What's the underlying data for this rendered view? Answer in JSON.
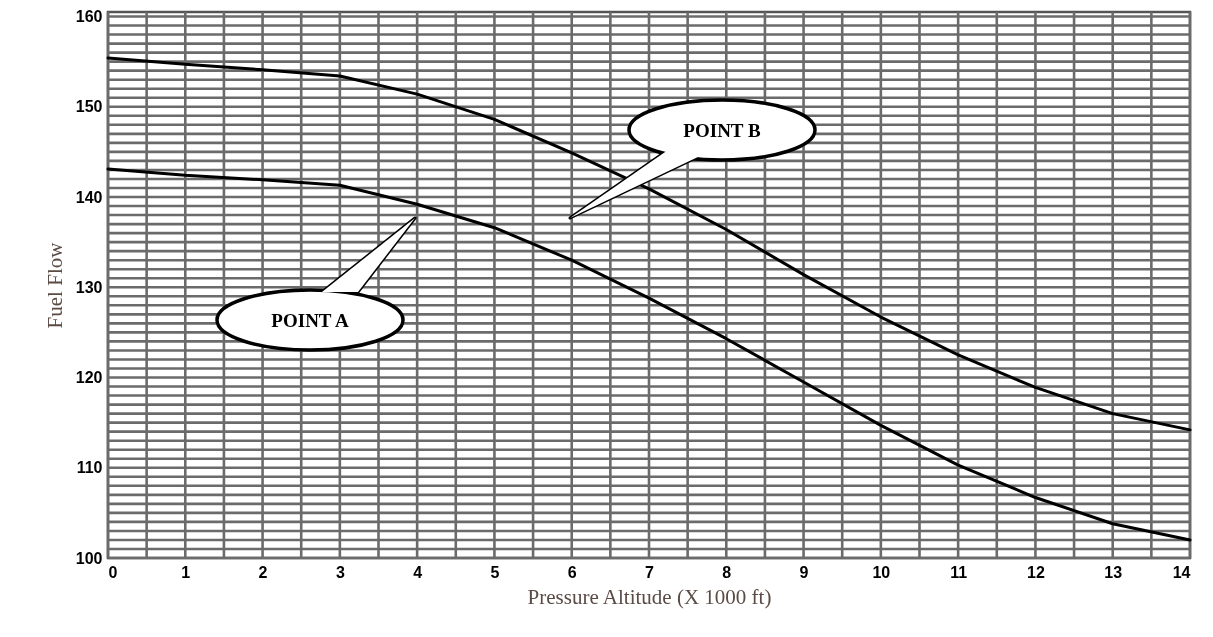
{
  "chart_data": {
    "type": "line",
    "xlabel": "Pressure  Altitude (X 1000 ft)",
    "ylabel": "Fuel Flow",
    "x": [
      0,
      1,
      2,
      3,
      4,
      5,
      6,
      7,
      8,
      9,
      10,
      11,
      12,
      13,
      14
    ],
    "series": [
      {
        "color": "#000000",
        "values": [
          155.4,
          154.7,
          154.1,
          153.4,
          151.4,
          148.6,
          144.9,
          140.9,
          136.4,
          131.4,
          126.7,
          122.5,
          118.9,
          116,
          114.2
        ]
      },
      {
        "color": "#000000",
        "values": [
          143.1,
          142.4,
          141.9,
          141.3,
          139.2,
          136.6,
          133,
          128.8,
          124.3,
          119.5,
          114.7,
          110.3,
          106.7,
          103.8,
          102
        ]
      }
    ],
    "annotations": [
      "POINT A",
      "POINT B"
    ],
    "xlim": [
      0,
      14
    ],
    "ylim": [
      100,
      160.5
    ],
    "xticks": [
      0,
      {
        "value": 0.5,
        "label": null
      },
      1,
      {
        "value": 1.5,
        "label": null
      },
      2,
      {
        "value": 2.5,
        "label": null
      },
      3,
      {
        "value": 3.5,
        "label": null
      },
      4,
      {
        "value": 4.5,
        "label": null
      },
      5,
      {
        "value": 5.5,
        "label": null
      },
      6,
      {
        "value": 6.5,
        "label": null
      },
      7,
      {
        "value": 7.5,
        "label": null
      },
      8,
      {
        "value": 8.5,
        "label": null
      },
      9,
      {
        "value": 9.5,
        "label": null
      },
      10,
      {
        "value": 10.5,
        "label": null
      },
      11,
      {
        "value": 11.5,
        "label": null
      },
      12,
      {
        "value": 12.5,
        "label": null
      },
      13,
      {
        "value": 13.5,
        "label": null
      },
      14
    ],
    "yticks": [
      100,
      {
        "value": 101,
        "label": null
      },
      {
        "value": 102,
        "label": null
      },
      {
        "value": 103,
        "label": null
      },
      {
        "value": 104,
        "label": null
      },
      {
        "value": 105,
        "label": null
      },
      {
        "value": 106,
        "label": null
      },
      {
        "value": 107,
        "label": null
      },
      {
        "value": 108,
        "label": null
      },
      {
        "value": 109,
        "label": null
      },
      110,
      {
        "value": 111,
        "label": null
      },
      {
        "value": 112,
        "label": null
      },
      {
        "value": 113,
        "label": null
      },
      {
        "value": 114,
        "label": null
      },
      {
        "value": 115,
        "label": null
      },
      {
        "value": 116,
        "label": null
      },
      {
        "value": 117,
        "label": null
      },
      {
        "value": 118,
        "label": null
      },
      {
        "value": 119,
        "label": null
      },
      120,
      {
        "value": 121,
        "label": null
      },
      {
        "value": 122,
        "label": null
      },
      {
        "value": 123,
        "label": null
      },
      {
        "value": 124,
        "label": null
      },
      {
        "value": 125,
        "label": null
      },
      {
        "value": 126,
        "label": null
      },
      {
        "value": 127,
        "label": null
      },
      {
        "value": 128,
        "label": null
      },
      {
        "value": 129,
        "label": null
      },
      130,
      {
        "value": 131,
        "label": null
      },
      {
        "value": 132,
        "label": null
      },
      {
        "value": 133,
        "label": null
      },
      {
        "value": 134,
        "label": null
      },
      {
        "value": 135,
        "label": null
      },
      {
        "value": 136,
        "label": null
      },
      {
        "value": 137,
        "label": null
      },
      {
        "value": 138,
        "label": null
      },
      {
        "value": 139,
        "label": null
      },
      140,
      {
        "value": 141,
        "label": null
      },
      {
        "value": 142,
        "label": null
      },
      {
        "value": 143,
        "label": null
      },
      {
        "value": 144,
        "label": null
      },
      {
        "value": 145,
        "label": null
      },
      {
        "value": 146,
        "label": null
      },
      {
        "value": 147,
        "label": null
      },
      {
        "value": 148,
        "label": null
      },
      {
        "value": 149,
        "label": null
      },
      150,
      {
        "value": 151,
        "label": null
      },
      {
        "value": 152,
        "label": null
      },
      {
        "value": 153,
        "label": null
      },
      {
        "value": 154,
        "label": null
      },
      {
        "value": 155,
        "label": null
      },
      {
        "value": 156,
        "label": null
      },
      {
        "value": 157,
        "label": null
      },
      {
        "value": 158,
        "label": null
      },
      {
        "value": 159,
        "label": null
      },
      160
    ],
    "grid": true,
    "marker": "none",
    "line_style": "solid"
  }
}
